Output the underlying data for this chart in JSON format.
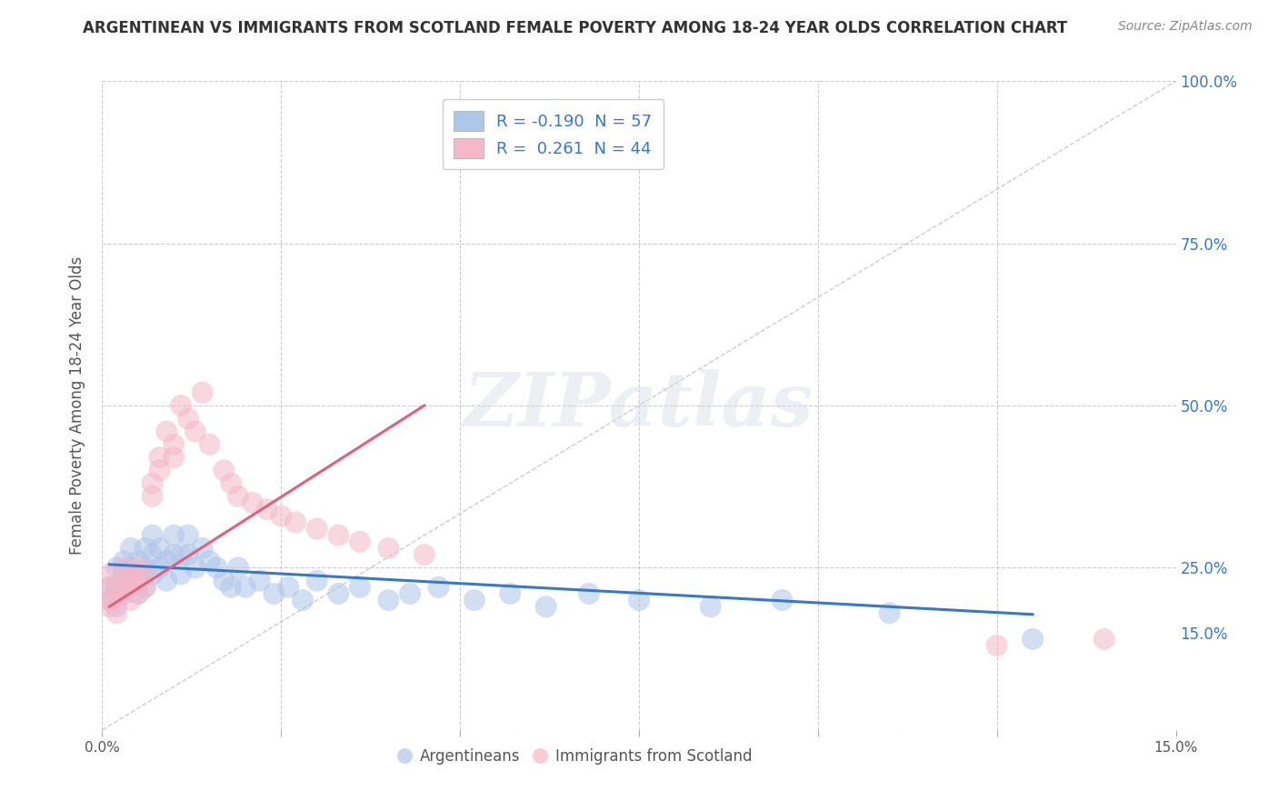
{
  "title": "ARGENTINEAN VS IMMIGRANTS FROM SCOTLAND FEMALE POVERTY AMONG 18-24 YEAR OLDS CORRELATION CHART",
  "source": "Source: ZipAtlas.com",
  "ylabel": "Female Poverty Among 18-24 Year Olds",
  "xlim": [
    0.0,
    0.15
  ],
  "ylim": [
    0.0,
    1.0
  ],
  "xtick_labels": [
    "0.0%",
    "",
    "",
    "",
    "",
    "",
    "15.0%"
  ],
  "right_ytick_positions": [
    1.0,
    0.75,
    0.5,
    0.25,
    0.15
  ],
  "right_ytick_labels": [
    "100.0%",
    "75.0%",
    "50.0%",
    "25.0%",
    "15.0%"
  ],
  "legend_r_labels": [
    "R = -0.190  N = 57",
    "R =  0.261  N = 44"
  ],
  "legend_colors": [
    "#aec6e8",
    "#f4b8c8"
  ],
  "scatter_colors": [
    "#aec6e8",
    "#f4b8c8"
  ],
  "trend_colors": [
    "#3878c8",
    "#e06080"
  ],
  "argentina": {
    "x": [
      0.001,
      0.001,
      0.002,
      0.002,
      0.002,
      0.003,
      0.003,
      0.003,
      0.004,
      0.004,
      0.004,
      0.005,
      0.005,
      0.005,
      0.006,
      0.006,
      0.006,
      0.007,
      0.007,
      0.007,
      0.008,
      0.008,
      0.009,
      0.009,
      0.01,
      0.01,
      0.011,
      0.011,
      0.012,
      0.012,
      0.013,
      0.014,
      0.015,
      0.016,
      0.017,
      0.018,
      0.019,
      0.02,
      0.022,
      0.024,
      0.026,
      0.028,
      0.03,
      0.033,
      0.036,
      0.04,
      0.043,
      0.047,
      0.052,
      0.057,
      0.062,
      0.068,
      0.075,
      0.085,
      0.095,
      0.11,
      0.13
    ],
    "y": [
      0.22,
      0.2,
      0.25,
      0.22,
      0.19,
      0.26,
      0.24,
      0.21,
      0.28,
      0.25,
      0.22,
      0.26,
      0.24,
      0.21,
      0.28,
      0.25,
      0.22,
      0.3,
      0.27,
      0.24,
      0.28,
      0.25,
      0.26,
      0.23,
      0.3,
      0.27,
      0.27,
      0.24,
      0.3,
      0.27,
      0.25,
      0.28,
      0.26,
      0.25,
      0.23,
      0.22,
      0.25,
      0.22,
      0.23,
      0.21,
      0.22,
      0.2,
      0.23,
      0.21,
      0.22,
      0.2,
      0.21,
      0.22,
      0.2,
      0.21,
      0.19,
      0.21,
      0.2,
      0.19,
      0.2,
      0.18,
      0.14
    ],
    "trend_x": [
      0.001,
      0.13
    ],
    "trend_y": [
      0.255,
      0.178
    ]
  },
  "scotland": {
    "x": [
      0.001,
      0.001,
      0.001,
      0.001,
      0.002,
      0.002,
      0.002,
      0.003,
      0.003,
      0.003,
      0.004,
      0.004,
      0.004,
      0.005,
      0.005,
      0.005,
      0.006,
      0.006,
      0.007,
      0.007,
      0.008,
      0.008,
      0.009,
      0.01,
      0.01,
      0.011,
      0.012,
      0.013,
      0.014,
      0.015,
      0.017,
      0.018,
      0.019,
      0.021,
      0.023,
      0.025,
      0.027,
      0.03,
      0.033,
      0.036,
      0.04,
      0.045,
      0.125,
      0.14
    ],
    "y": [
      0.24,
      0.22,
      0.2,
      0.19,
      0.22,
      0.2,
      0.18,
      0.25,
      0.23,
      0.21,
      0.24,
      0.22,
      0.2,
      0.25,
      0.23,
      0.21,
      0.24,
      0.22,
      0.38,
      0.36,
      0.42,
      0.4,
      0.46,
      0.44,
      0.42,
      0.5,
      0.48,
      0.46,
      0.52,
      0.44,
      0.4,
      0.38,
      0.36,
      0.35,
      0.34,
      0.33,
      0.32,
      0.31,
      0.3,
      0.29,
      0.28,
      0.27,
      0.13,
      0.14
    ],
    "trend_x": [
      0.001,
      0.045
    ],
    "trend_y": [
      0.19,
      0.5
    ]
  },
  "background_color": "#ffffff",
  "grid_color": "#cccccc",
  "title_fontsize": 12,
  "source_fontsize": 10,
  "watermark_color": "#d5dfe8"
}
